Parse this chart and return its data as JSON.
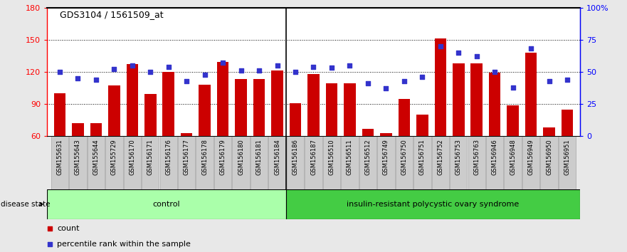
{
  "title": "GDS3104 / 1561509_at",
  "samples": [
    "GSM155631",
    "GSM155643",
    "GSM155644",
    "GSM155729",
    "GSM156170",
    "GSM156171",
    "GSM156176",
    "GSM156177",
    "GSM156178",
    "GSM156179",
    "GSM156180",
    "GSM156181",
    "GSM156184",
    "GSM156186",
    "GSM156187",
    "GSM156510",
    "GSM156511",
    "GSM156512",
    "GSM156749",
    "GSM156750",
    "GSM156751",
    "GSM156752",
    "GSM156753",
    "GSM156763",
    "GSM156946",
    "GSM156948",
    "GSM156949",
    "GSM156950",
    "GSM156951"
  ],
  "bar_values": [
    100,
    72,
    72,
    107,
    127,
    99,
    120,
    63,
    108,
    129,
    113,
    113,
    121,
    91,
    118,
    109,
    109,
    67,
    63,
    95,
    80,
    151,
    128,
    128,
    119,
    89,
    138,
    68,
    85
  ],
  "percentile_values": [
    50,
    45,
    44,
    52,
    55,
    50,
    54,
    43,
    48,
    57,
    51,
    51,
    55,
    50,
    54,
    53,
    55,
    41,
    37,
    43,
    46,
    70,
    65,
    62,
    50,
    38,
    68,
    43,
    44
  ],
  "control_count": 13,
  "disease_count": 16,
  "bar_color": "#cc0000",
  "dot_color": "#3333cc",
  "control_color": "#aaffaa",
  "disease_color": "#44cc44",
  "ymin": 60,
  "ymax": 180,
  "yticks": [
    60,
    90,
    120,
    150,
    180
  ],
  "y2min": 0,
  "y2max": 100,
  "y2ticks": [
    0,
    25,
    50,
    75,
    100
  ],
  "y2ticklabels": [
    "0",
    "25",
    "50",
    "75",
    "100%"
  ],
  "bg_color": "#e8e8e8",
  "plot_bg": "#ffffff",
  "label_bg": "#d0d0d0"
}
